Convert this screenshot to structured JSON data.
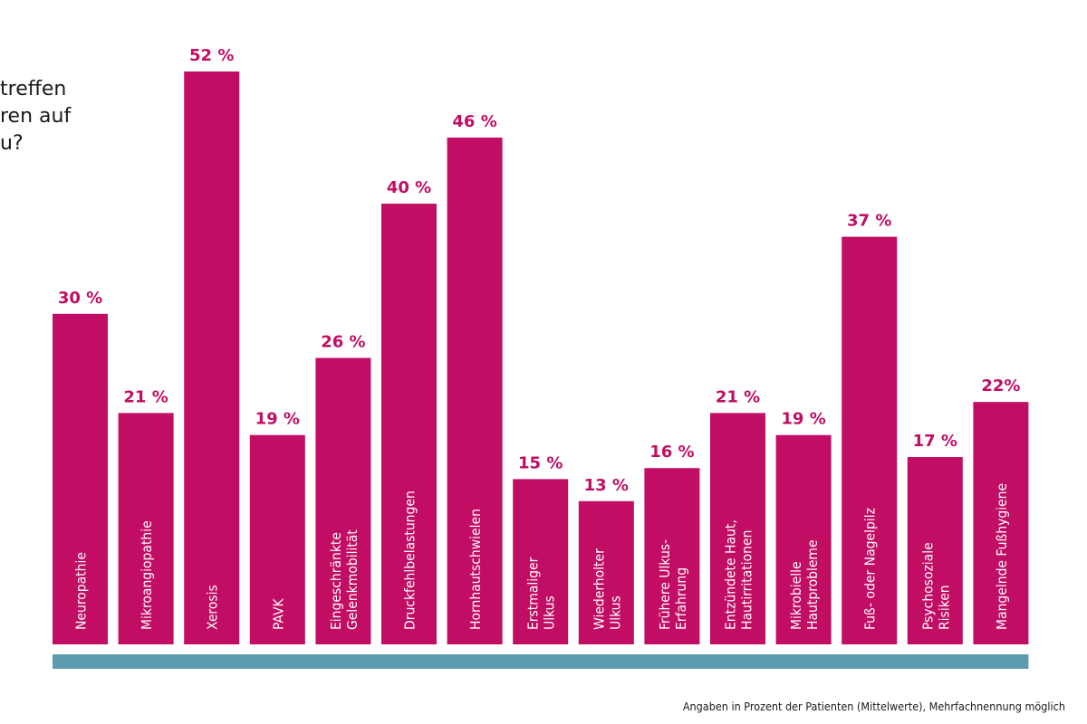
{
  "question_lines": [
    "treffen",
    "ren auf",
    "u?"
  ],
  "footnote": "Angaben in Prozent der Patienten (Mittelwerte), Mehrfachnennung möglich",
  "colors": {
    "bar": "#c10d63",
    "value_label": "#c10d63",
    "category_label": "#ffffff",
    "baseline": "#5d9bb1"
  },
  "chart_data": {
    "type": "bar",
    "grid": false,
    "ylim": [
      0,
      52
    ],
    "categories": [
      [
        "Neuropathie"
      ],
      [
        "Mikroangiopathie"
      ],
      [
        "Xerosis"
      ],
      [
        "PAVK"
      ],
      [
        "Eingeschränkte",
        "Gelenkmobilität"
      ],
      [
        "Druckfehlbelastungen"
      ],
      [
        "Hornhautschwielen"
      ],
      [
        "Erstmaliger",
        "Ulkus"
      ],
      [
        "Wiederholter",
        "Ulkus"
      ],
      [
        "Frühere Ulkus-",
        "Erfahrung"
      ],
      [
        "Entzündete Haut,",
        "Hautirritationen"
      ],
      [
        "Mikrobielle",
        "Hautprobleme"
      ],
      [
        "Fuß- oder Nagelpilz"
      ],
      [
        "Psychosoziale",
        "Risiken"
      ],
      [
        "Mangelnde Fußhygiene"
      ]
    ],
    "values": [
      30,
      21,
      52,
      19,
      26,
      40,
      46,
      15,
      13,
      16,
      21,
      19,
      37,
      17,
      22
    ],
    "value_labels": [
      "30 %",
      "21 %",
      "52 %",
      "19 %",
      "26 %",
      "40 %",
      "46 %",
      "15 %",
      "13 %",
      "16 %",
      "21 %",
      "19 %",
      "37 %",
      "17 %",
      "22%"
    ]
  }
}
